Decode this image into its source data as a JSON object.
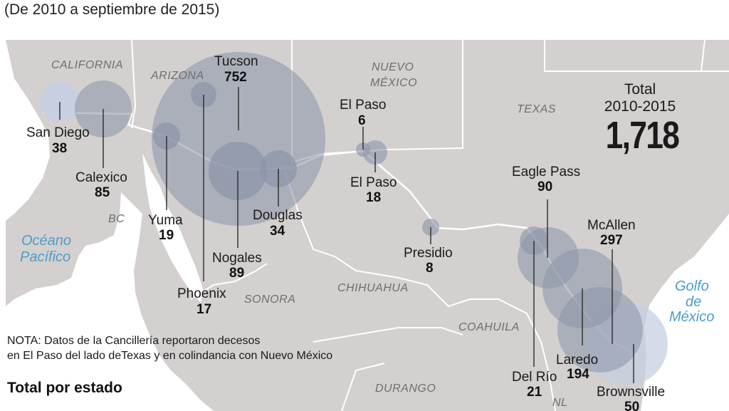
{
  "subtitle": "(De 2010 a septiembre de 2015)",
  "colors": {
    "land": "#d3d0cf",
    "ocean": "#ffffff",
    "bubble": "#8a94a8",
    "bubble_light": "#c7cfe0",
    "border": "#ffffff",
    "ocean_text": "#4a9ec7"
  },
  "regions": {
    "california": "CALIFORNIA",
    "arizona": "ARIZONA",
    "nuevo_mexico_1": "NUEVO",
    "nuevo_mexico_2": "MÉXICO",
    "texas": "TEXAS",
    "bc": "BC",
    "sonora": "SONORA",
    "chihuahua": "CHIHUAHUA",
    "coahuila": "COAHUILA",
    "durango": "DURANGO",
    "nl": "NL"
  },
  "oceans": {
    "pacific_1": "Océano",
    "pacific_2": "Pacífico",
    "gulf_1": "Golfo",
    "gulf_2": "de",
    "gulf_3": "México"
  },
  "locations": [
    {
      "id": "san-diego",
      "name": "San Diego",
      "count": 38
    },
    {
      "id": "calexico",
      "name": "Calexico",
      "count": 85
    },
    {
      "id": "yuma",
      "name": "Yuma",
      "count": 19
    },
    {
      "id": "tucson",
      "name": "Tucson",
      "count": 752
    },
    {
      "id": "phoenix",
      "name": "Phoenix",
      "count": 17
    },
    {
      "id": "nogales",
      "name": "Nogales",
      "count": 89
    },
    {
      "id": "douglas",
      "name": "Douglas",
      "count": 34
    },
    {
      "id": "el-paso-nm",
      "name": "El Paso",
      "count": 6
    },
    {
      "id": "el-paso-tx",
      "name": "El Paso",
      "count": 18
    },
    {
      "id": "presidio",
      "name": "Presidio",
      "count": 8
    },
    {
      "id": "eagle-pass",
      "name": "Eagle Pass",
      "count": 90
    },
    {
      "id": "del-rio",
      "name": "Del Río",
      "count": 21
    },
    {
      "id": "laredo",
      "name": "Laredo",
      "count": 194
    },
    {
      "id": "mcallen",
      "name": "McAllen",
      "count": 297
    },
    {
      "id": "brownsville",
      "name": "Brownsville",
      "count": 50
    }
  ],
  "total": {
    "label": "Total",
    "range": "2010-2015",
    "value": "1,718"
  },
  "note": {
    "line1": "NOTA: Datos de la Cancillería reportaron decesos",
    "line2": "en El Paso del lado deTexas y en colindancia con Nuevo México"
  },
  "state_heading": "Total por estado"
}
